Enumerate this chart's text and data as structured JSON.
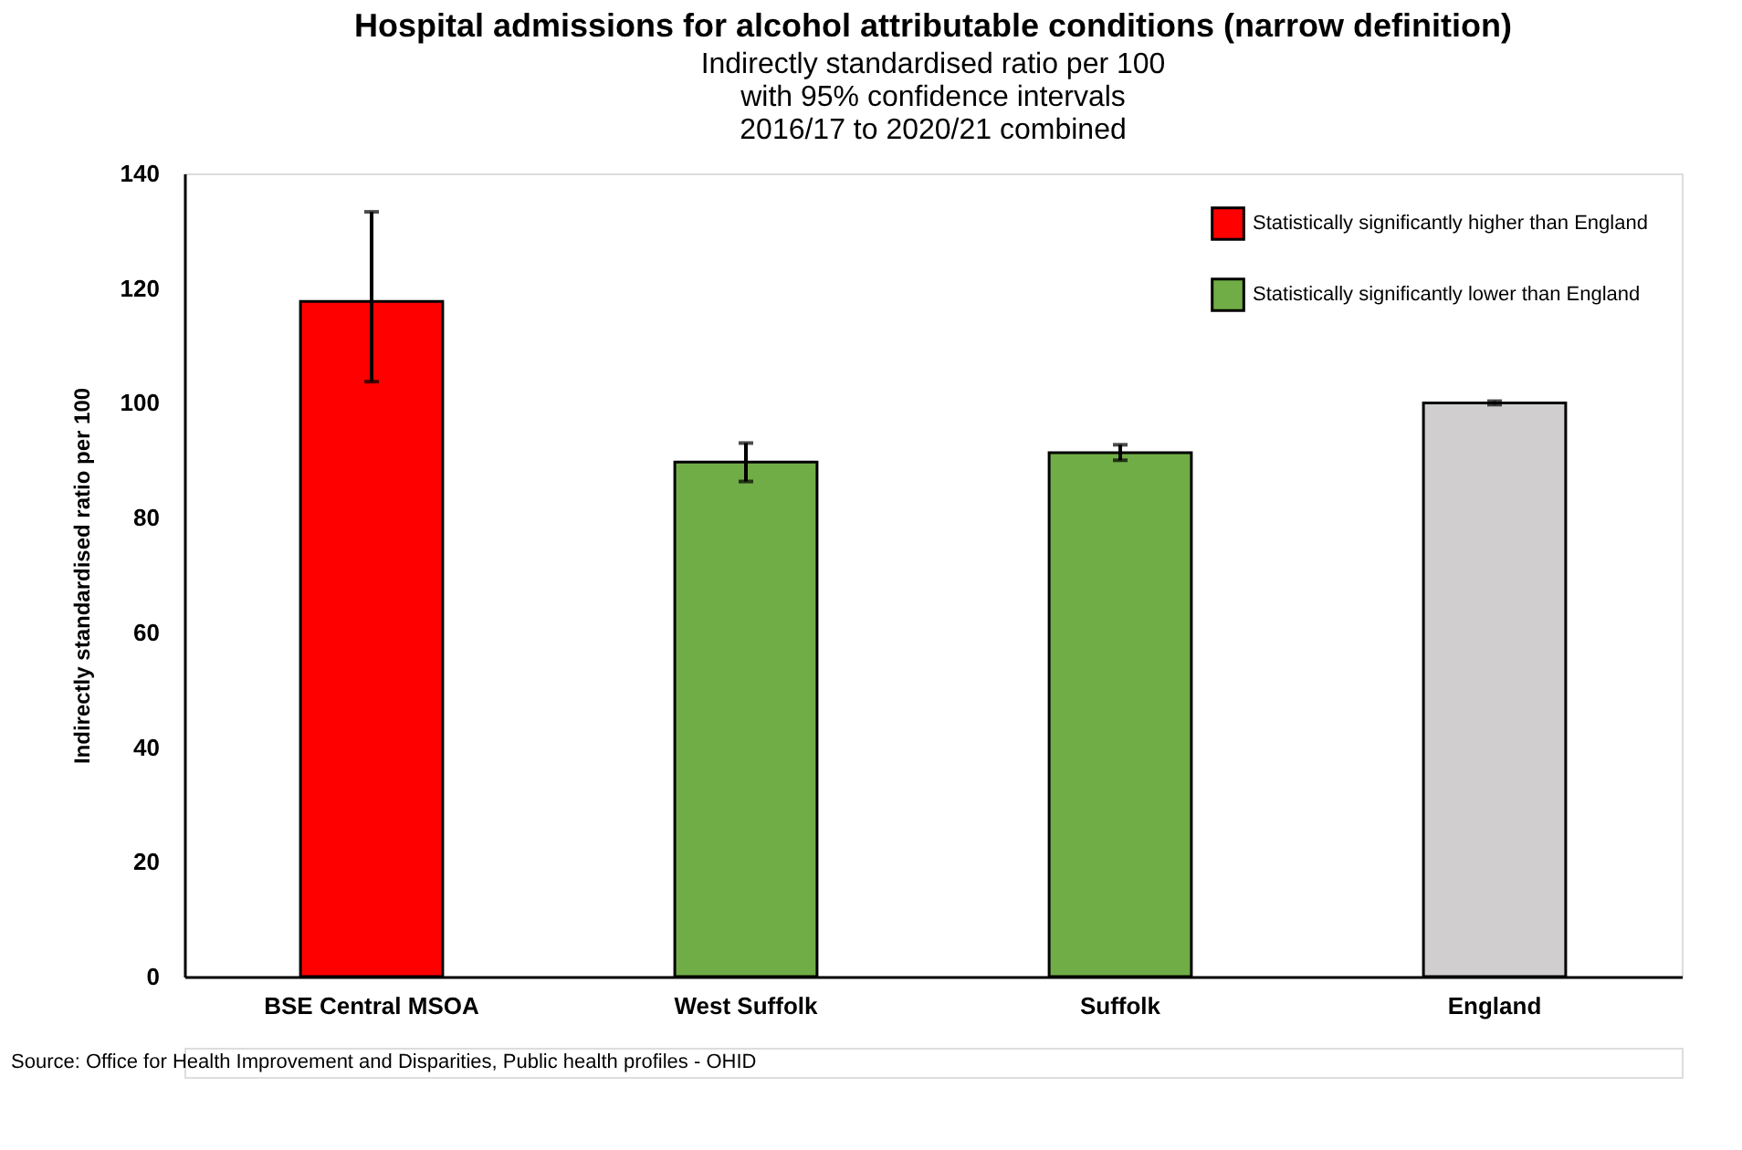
{
  "chart_data": {
    "type": "bar",
    "title": "Hospital admissions for alcohol attributable conditions (narrow definition)",
    "subtitle": "Indirectly standardised ratio per 100\nwith 95% confidence intervals\n2016/17 to 2020/21 combined",
    "ylabel": "Indirectly standardised ratio per 100",
    "categories": [
      "BSE Central MSOA",
      "West Suffolk",
      "Suffolk",
      "England"
    ],
    "series": [
      {
        "name": "Statistically significantly higher than England",
        "color": "#ff0000",
        "values": [
          117.7,
          null,
          null,
          null
        ],
        "errors": [
          [
            103.7,
            133.3
          ],
          null,
          null,
          null
        ]
      },
      {
        "name": "Statistically significantly lower than England",
        "color": "#70ad47",
        "values": [
          null,
          89.7,
          91.3,
          null
        ],
        "errors": [
          null,
          [
            86.3,
            93.0
          ],
          [
            90.0,
            92.7
          ],
          null
        ]
      },
      {
        "color": "#d0cece",
        "values": [
          null,
          null,
          null,
          100
        ],
        "errors": [
          null,
          null,
          null,
          [
            99.7,
            100.3
          ]
        ]
      }
    ],
    "ylim": [
      0,
      140
    ],
    "yticks": [
      0,
      20,
      40,
      60,
      80,
      100,
      120,
      140
    ],
    "grid": false,
    "legend": "top right",
    "annotations": [
      "Source: Office for Health Improvement and Disparities, Public health profiles - OHID"
    ]
  }
}
